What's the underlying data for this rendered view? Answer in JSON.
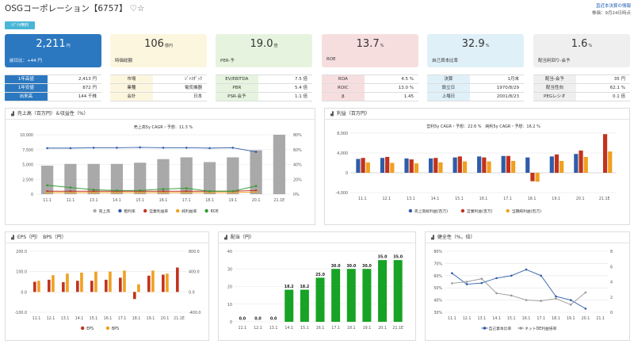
{
  "header": {
    "title": "OSGコーポレーション【6757】",
    "icons": "♡☆",
    "right_link": "直近本決算の情報",
    "updated": "株価：9月24日時点"
  },
  "badge": "ｼｸﾞﾅﾙ無料",
  "kpis": [
    {
      "value": "2,211",
      "unit": "円",
      "label": "前日比：+44 円",
      "bg": "#2b78c0",
      "fg": "#ffffff"
    },
    {
      "value": "106",
      "unit": "億円",
      "label": "時価総額",
      "bg": "#fdf6df",
      "fg": "#333333"
    },
    {
      "value": "19.0",
      "unit": "倍",
      "label": "PER-予",
      "bg": "#e6f4df",
      "fg": "#333333"
    },
    {
      "value": "13.7",
      "unit": "%",
      "label": "ROE",
      "bg": "#f7dede",
      "fg": "#333333"
    },
    {
      "value": "32.9",
      "unit": "%",
      "label": "自己資本比率",
      "bg": "#dff0f8",
      "fg": "#333333"
    },
    {
      "value": "1.6",
      "unit": "%",
      "label": "配当利回り-会予",
      "bg": "#efefef",
      "fg": "#333333"
    }
  ],
  "stat_groups": [
    {
      "key_bg": "#2b78c0",
      "key_fg": "#ffffff",
      "rows": [
        [
          "1年高値",
          "2,413 円"
        ],
        [
          "1年安値",
          "872 円"
        ],
        [
          "出来高",
          "144 千株"
        ]
      ]
    },
    {
      "key_bg": "#fdf6df",
      "key_fg": "#333333",
      "rows": [
        [
          "市場",
          "ｼﾞｬｽﾀﾞｯｸ"
        ],
        [
          "業種",
          "電気機器"
        ],
        [
          "会計",
          "日本"
        ]
      ]
    },
    {
      "key_bg": "#e6f4df",
      "key_fg": "#333333",
      "rows": [
        [
          "EV/EBITDA",
          "7.5 倍"
        ],
        [
          "PBR",
          "5.4 倍"
        ],
        [
          "PSR-会予",
          "1.1 倍"
        ]
      ]
    },
    {
      "key_bg": "#f7dede",
      "key_fg": "#333333",
      "rows": [
        [
          "ROA",
          "4.5 %"
        ],
        [
          "ROIC",
          "13.0 %"
        ],
        [
          "β",
          "1.45"
        ]
      ]
    },
    {
      "key_bg": "#dff0f8",
      "key_fg": "#333333",
      "rows": [
        [
          "決算",
          "1月末"
        ],
        [
          "設立日",
          "1970/8/29"
        ],
        [
          "上場日",
          "2001/8/23"
        ]
      ]
    },
    {
      "key_bg": "#efefef",
      "key_fg": "#333333",
      "rows": [
        [
          "配当-会予",
          "35 円"
        ],
        [
          "配当性向",
          "62.1 %"
        ],
        [
          "PEGレシオ",
          "0.1 倍"
        ]
      ]
    }
  ],
  "colors": {
    "gray": "#a9a9a9",
    "blue": "#2f5ca8",
    "red": "#c2321d",
    "orange": "#f0a020",
    "green": "#2e9a2e",
    "bargreen": "#17a325",
    "grid": "#e6e6e6",
    "axis": "#555555",
    "pt": "#999999"
  },
  "panels": {
    "sales": {
      "title": "売上高（百万円）＆収益性（%）",
      "icon": "bar-chart-icon"
    },
    "profit": {
      "title": "利益（百万円）",
      "icon": "bar-chart-icon"
    },
    "eps": {
      "title": "EPS（円）　BPS（円）",
      "icon": "bar-chart-icon"
    },
    "dividend": {
      "title": "配当（円）",
      "icon": "bar-chart-icon"
    },
    "health": {
      "title": "健全性（%，倍）",
      "icon": "bar-chart-icon"
    }
  },
  "chart_data": [
    {
      "id": "sales",
      "type": "bar",
      "title": "売上高5y CAGR・予想：11.3 %",
      "categories": [
        "11.1",
        "12.1",
        "13.1",
        "14.1",
        "15.1",
        "16.1",
        "17.1",
        "18.1",
        "19.1",
        "20.1",
        "21.1E"
      ],
      "y_left": {
        "min": 0,
        "max": 10000,
        "ticks": [
          "0",
          "2,500",
          "5,000",
          "7,500",
          "10,000"
        ]
      },
      "y_right": {
        "min": 0,
        "max": 80,
        "ticks": [
          "0%",
          "20%",
          "40%",
          "60%",
          "80%"
        ]
      },
      "series": [
        {
          "name": "売上高",
          "kind": "bar",
          "axis": "left",
          "color": "#a9a9a9",
          "values": [
            4800,
            5100,
            5100,
            5100,
            5300,
            5900,
            6200,
            5400,
            6200,
            7400,
            10000
          ]
        },
        {
          "name": "粗利率",
          "kind": "line",
          "axis": "right",
          "color": "#2f5ca8",
          "values": [
            62,
            62,
            62.5,
            62.5,
            63,
            62.5,
            62.5,
            62,
            62.5,
            57,
            null
          ]
        },
        {
          "name": "営業利益率",
          "kind": "line",
          "axis": "right",
          "color": "#c2321d",
          "values": [
            4,
            4,
            4,
            4,
            4,
            4,
            4,
            4,
            4,
            5,
            null
          ]
        },
        {
          "name": "純利益率",
          "kind": "line",
          "axis": "right",
          "color": "#f0a020",
          "values": [
            2,
            2,
            2,
            2,
            2,
            2,
            2,
            2,
            2,
            3,
            null
          ]
        },
        {
          "name": "ROE",
          "kind": "line",
          "axis": "right",
          "color": "#2e9a2e",
          "values": [
            12,
            9,
            6,
            5,
            5,
            7,
            8,
            4,
            4,
            11,
            null
          ]
        }
      ],
      "legend": [
        "売上高",
        "粗利率",
        "営業利益率",
        "純利益率",
        "ROE"
      ]
    },
    {
      "id": "profit",
      "type": "bar",
      "title": "営利5y CAGR・予想：22.6 %　純利5y CAGR・予想：16.2 %",
      "categories": [
        "11.1",
        "12.1",
        "13.1",
        "14.1",
        "15.1",
        "16.1",
        "17.1",
        "18.1",
        "19.1",
        "20.1",
        "21.1E"
      ],
      "y": {
        "min": -4000,
        "max": 8000,
        "ticks": [
          "-4,000",
          "0",
          "4,000",
          "8,000"
        ]
      },
      "series": [
        {
          "name": "売上高総利益(百万)",
          "color": "#2f5ca8",
          "values": [
            2800,
            3000,
            2900,
            2900,
            3100,
            3300,
            3400,
            3100,
            3300,
            3800,
            null
          ]
        },
        {
          "name": "営業利益(百万)",
          "color": "#c2321d",
          "values": [
            3000,
            3200,
            2700,
            3000,
            3300,
            3100,
            3400,
            -1700,
            3700,
            4500,
            7800
          ]
        },
        {
          "name": "当期純利益(百万)",
          "color": "#f0a020",
          "values": [
            2100,
            2000,
            1900,
            2100,
            2300,
            2300,
            2400,
            -1800,
            2400,
            3200,
            4300
          ]
        }
      ],
      "legend": [
        "売上高総利益(百万)",
        "営業利益(百万)",
        "当期純利益(百万)"
      ]
    },
    {
      "id": "eps",
      "type": "bar",
      "categories": [
        "11.1",
        "12.1",
        "13.1",
        "14.1",
        "15.1",
        "16.1",
        "17.1",
        "18.1",
        "19.1",
        "20.1",
        "21.1E"
      ],
      "y_left": {
        "min": -100,
        "max": 200,
        "ticks": [
          "-100.0",
          "0.0",
          "100.0",
          "200.0"
        ]
      },
      "y_right": {
        "min": -400,
        "max": 800,
        "ticks": [
          "-400.0",
          "0.0",
          "400.0",
          "800.0"
        ]
      },
      "series": [
        {
          "name": "EPS",
          "axis": "left",
          "color": "#c2321d",
          "values": [
            50,
            60,
            48,
            55,
            55,
            60,
            70,
            -35,
            80,
            85,
            120
          ]
        },
        {
          "name": "BPS",
          "axis": "right",
          "color": "#f0a020",
          "values": [
            220,
            330,
            360,
            380,
            400,
            400,
            420,
            150,
            420,
            360,
            null
          ]
        }
      ],
      "legend": [
        "EPS",
        "BPS"
      ]
    },
    {
      "id": "dividend",
      "type": "bar",
      "categories": [
        "11.1",
        "12.1",
        "13.1",
        "14.1",
        "15.1",
        "16.1",
        "17.1",
        "18.1",
        "19.1",
        "20.1",
        "21.1E"
      ],
      "y": {
        "min": 0,
        "max": 40,
        "ticks": [
          "0",
          "10",
          "20",
          "30",
          "40"
        ]
      },
      "series": [
        {
          "name": "配当",
          "color": "#17a325",
          "values": [
            0,
            0,
            0,
            18.2,
            18.2,
            25,
            30,
            30,
            30,
            35,
            35
          ]
        }
      ],
      "labels": [
        "0.0",
        "0.0",
        "0.0",
        "18.2",
        "18.2",
        "25.0",
        "30.0",
        "30.0",
        "30.0",
        "35.0",
        "35.0"
      ]
    },
    {
      "id": "health",
      "type": "line",
      "categories": [
        "11.1",
        "12.1",
        "13.1",
        "14.1",
        "15.1",
        "16.1",
        "17.1",
        "18.1",
        "19.1",
        "20.1",
        "21.1"
      ],
      "y_left": {
        "min": 30,
        "max": 80,
        "ticks": [
          "30%",
          "40%",
          "50%",
          "60%",
          "70%",
          "80%"
        ]
      },
      "y_right": {
        "min": 0,
        "max": 8,
        "ticks": [
          "0",
          "2",
          "4",
          "6",
          "8"
        ]
      },
      "series": [
        {
          "name": "自己資本比率",
          "axis": "left",
          "color": "#2f5ca8",
          "values": [
            62,
            53,
            54,
            58,
            60,
            65,
            60,
            43,
            40,
            33,
            null
          ]
        },
        {
          "name": "ネットDE利益倍率",
          "axis": "right",
          "color": "#999999",
          "values": [
            3.8,
            4.0,
            4.4,
            2.5,
            2.2,
            1.6,
            1.5,
            1.8,
            1.0,
            2.6,
            null
          ]
        }
      ],
      "legend": [
        "自己資本比率",
        "ネットDE利益倍率"
      ]
    }
  ]
}
